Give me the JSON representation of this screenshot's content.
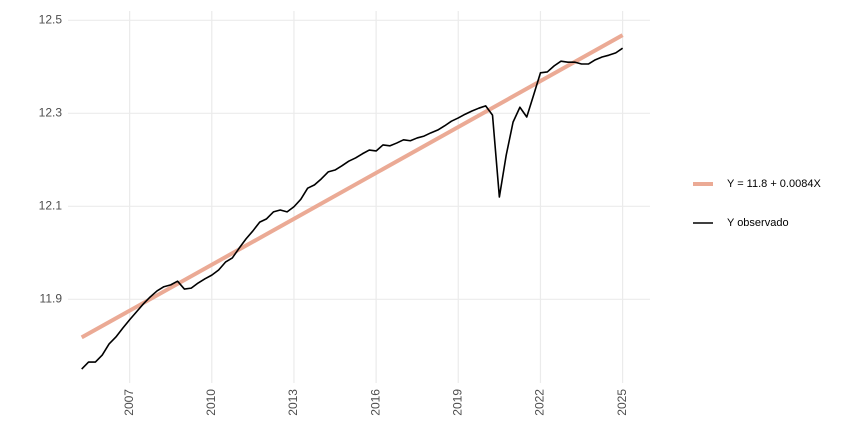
{
  "chart_data": {
    "type": "line",
    "xlim": [
      2004.75,
      2026
    ],
    "xticks": [
      2007,
      2010,
      2013,
      2016,
      2019,
      2022,
      2025
    ],
    "ylim": [
      11.72,
      12.52
    ],
    "yticks": [
      {
        "value": 11.9,
        "label": "11.9"
      },
      {
        "value": 12.1,
        "label": "12.1"
      },
      {
        "value": 12.3,
        "label": "12.3"
      },
      {
        "value": 12.5,
        "label": "12.5"
      }
    ],
    "grid": true,
    "legend": "right",
    "series": [
      {
        "name": "Y = 11.8 + 0.0084X",
        "color": "#ebaa95",
        "x": [
          2005.25,
          2025.0
        ],
        "values": [
          11.818,
          12.468
        ]
      },
      {
        "name": "Y observado",
        "color": "#000000",
        "x": [
          2005.25,
          2005.5,
          2005.75,
          2006.0,
          2006.25,
          2006.5,
          2006.75,
          2007.0,
          2007.25,
          2007.5,
          2007.75,
          2008.0,
          2008.25,
          2008.5,
          2008.75,
          2009.0,
          2009.25,
          2009.5,
          2009.75,
          2010.0,
          2010.25,
          2010.5,
          2010.75,
          2011.0,
          2011.25,
          2011.5,
          2011.75,
          2012.0,
          2012.25,
          2012.5,
          2012.75,
          2013.0,
          2013.25,
          2013.5,
          2013.75,
          2014.0,
          2014.25,
          2014.5,
          2014.75,
          2015.0,
          2015.25,
          2015.5,
          2015.75,
          2016.0,
          2016.25,
          2016.5,
          2016.75,
          2017.0,
          2017.25,
          2017.5,
          2017.75,
          2018.0,
          2018.25,
          2018.5,
          2018.75,
          2019.0,
          2019.25,
          2019.5,
          2019.75,
          2020.0,
          2020.25,
          2020.5,
          2020.75,
          2021.0,
          2021.25,
          2021.5,
          2021.75,
          2022.0,
          2022.25,
          2022.5,
          2022.75,
          2023.0,
          2023.25,
          2023.5,
          2023.75,
          2024.0,
          2024.25,
          2024.5,
          2024.75,
          2025.0
        ],
        "values": [
          11.75,
          11.765,
          11.765,
          11.78,
          11.804,
          11.819,
          11.838,
          11.856,
          11.873,
          11.89,
          11.905,
          11.918,
          11.927,
          11.931,
          11.939,
          11.922,
          11.924,
          11.935,
          11.944,
          11.952,
          11.963,
          11.98,
          11.989,
          12.01,
          12.03,
          12.047,
          12.066,
          12.073,
          12.088,
          12.092,
          12.088,
          12.099,
          12.115,
          12.139,
          12.146,
          12.159,
          12.174,
          12.178,
          12.187,
          12.197,
          12.204,
          12.213,
          12.221,
          12.219,
          12.232,
          12.23,
          12.236,
          12.243,
          12.241,
          12.247,
          12.251,
          12.258,
          12.264,
          12.273,
          12.283,
          12.29,
          12.298,
          12.305,
          12.311,
          12.316,
          12.296,
          12.12,
          12.21,
          12.281,
          12.313,
          12.292,
          12.339,
          12.387,
          12.389,
          12.402,
          12.412,
          12.41,
          12.41,
          12.406,
          12.406,
          12.415,
          12.421,
          12.425,
          12.43,
          12.44
        ]
      }
    ]
  }
}
